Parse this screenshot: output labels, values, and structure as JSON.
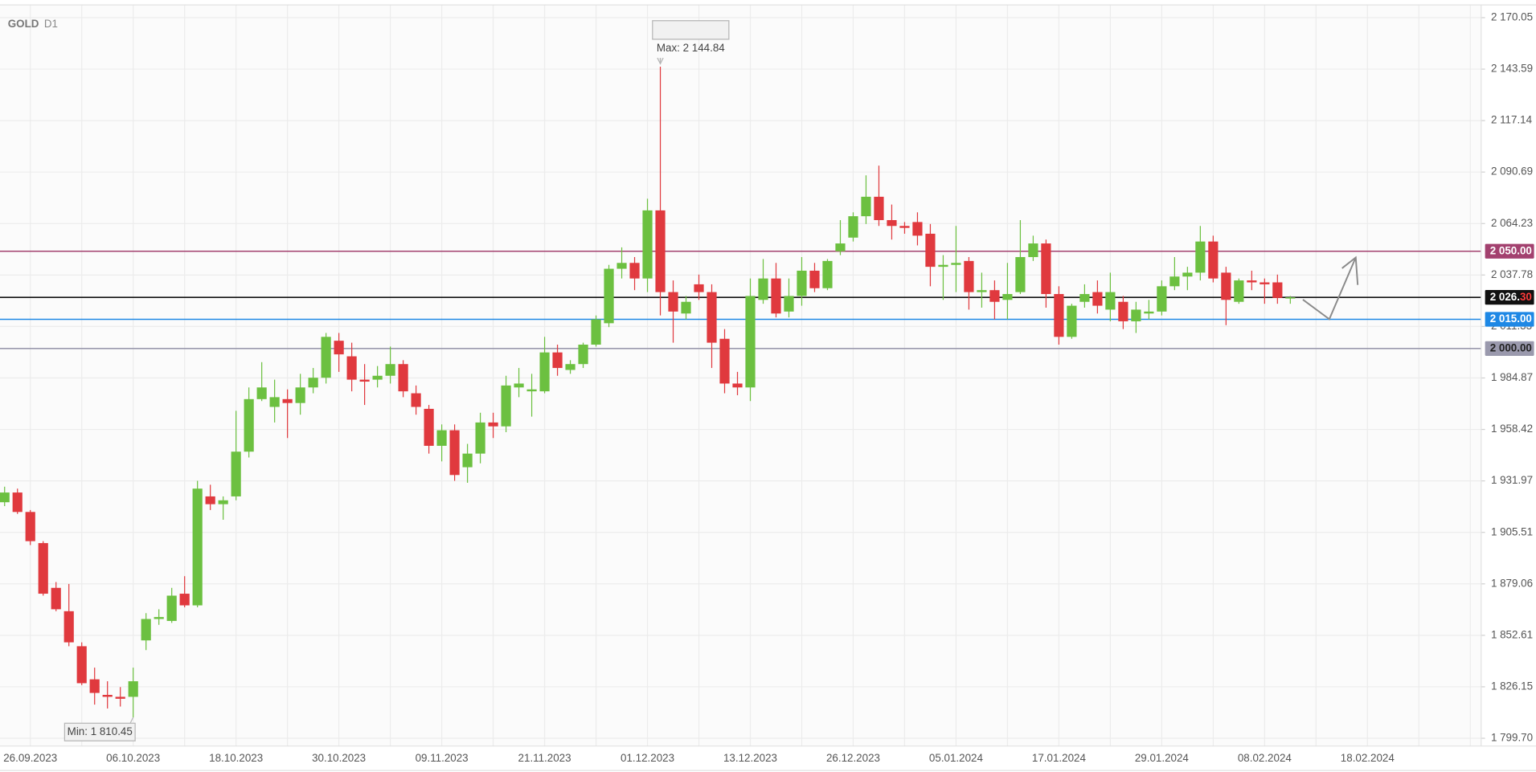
{
  "chart_data": {
    "type": "candlestick",
    "title": "GOLD",
    "timeframe": "D1",
    "categories": [
      null,
      null,
      "26.09.2023",
      null,
      null,
      null,
      null,
      null,
      null,
      null,
      "06.10.2023",
      null,
      null,
      null,
      null,
      null,
      null,
      null,
      "18.10.2023",
      null,
      null,
      null,
      null,
      null,
      null,
      null,
      "30.10.2023",
      null,
      null,
      null,
      null,
      null,
      null,
      null,
      "09.11.2023",
      null,
      null,
      null,
      null,
      null,
      null,
      null,
      "21.11.2023",
      null,
      null,
      null,
      null,
      null,
      null,
      null,
      "01.12.2023",
      null,
      null,
      null,
      null,
      null,
      null,
      null,
      "13.12.2023",
      null,
      null,
      null,
      null,
      null,
      null,
      null,
      "26.12.2023",
      null,
      null,
      null,
      null,
      null,
      null,
      null,
      "05.01.2024",
      null,
      null,
      null,
      null,
      null,
      null,
      null,
      "17.01.2024",
      null,
      null,
      null,
      null,
      null,
      null,
      null,
      "29.01.2024",
      null,
      null,
      null,
      null,
      null,
      null,
      null,
      "08.02.2024",
      null,
      null,
      null,
      null,
      null,
      null,
      null,
      "18.02.2024"
    ],
    "open": [
      1921,
      1926,
      1916,
      1900,
      1877,
      1865,
      1847,
      1830,
      1822,
      1821,
      1821,
      1850,
      1861,
      1860,
      1874,
      1868,
      1924,
      1920,
      1924,
      1947,
      1974,
      1970,
      1974,
      1972,
      1980,
      1985,
      2004,
      1996,
      1984,
      1984,
      1986,
      1992,
      1977,
      1969,
      1950,
      1958,
      1939,
      1946,
      1962,
      1960,
      1980,
      1978,
      1978,
      1998,
      1989,
      1992,
      2002,
      2013,
      2041,
      2044,
      2036,
      2071,
      2029,
      2018,
      2033,
      2029,
      2005,
      1982,
      1980,
      2025,
      2036,
      2019,
      2027,
      2040,
      2031,
      2050,
      2057,
      2068,
      2078,
      2066,
      2063,
      2065,
      2059,
      2042,
      2043,
      2045,
      2029,
      2030,
      2025,
      2029,
      2047,
      2054,
      2028,
      2006,
      2024,
      2029,
      2020,
      2024,
      2014,
      2018,
      2019,
      2032,
      2037,
      2039,
      2055,
      2039,
      2024,
      2035,
      2034,
      2034,
      2026,
      null,
      null,
      null,
      null,
      null,
      null
    ],
    "high": [
      1929,
      1928,
      1917,
      1901,
      1880,
      1879,
      1849,
      1836,
      1829,
      1826,
      1836,
      1864,
      1866,
      1877,
      1883,
      1932,
      1930,
      1924,
      1968,
      1980,
      1993,
      1984,
      1979,
      1987,
      1990,
      2008,
      2008,
      2003,
      1992,
      1991,
      2001,
      1994,
      1981,
      1971,
      1961,
      1961,
      1951,
      1967,
      1967,
      1986,
      1990,
      1987,
      2006,
      2002,
      1994,
      2003,
      2017,
      2043,
      2052,
      2047,
      2077,
      2144.84,
      2035,
      2027,
      2038,
      2033,
      2010,
      1988,
      2036,
      2046,
      2044,
      2036,
      2047,
      2044,
      2046,
      2066,
      2070,
      2089,
      2094,
      2074,
      2065,
      2070,
      2064,
      2048,
      2063,
      2047,
      2039,
      2035,
      2044,
      2066,
      2058,
      2056,
      2032,
      2023,
      2033,
      2035,
      2039,
      2027,
      2024,
      2025,
      2035,
      2047,
      2042,
      2063,
      2058,
      2042,
      2036,
      2040,
      2036,
      2038,
      2027,
      null,
      null,
      null,
      null,
      null,
      null
    ],
    "low": [
      1919,
      1915,
      1899,
      1873,
      1865,
      1847,
      1827,
      1817,
      1815,
      1816,
      1810.45,
      1845,
      1858,
      1859,
      1867,
      1867,
      1917,
      1912,
      1922,
      1944,
      1973,
      1962,
      1954,
      1966,
      1977,
      1982,
      1988,
      1978,
      1971,
      1980,
      1982,
      1975,
      1966,
      1946,
      1942,
      1932,
      1931,
      1941,
      1954,
      1957,
      1975,
      1965,
      1977,
      1986,
      1987,
      1990,
      2001,
      2011,
      2036,
      2030,
      2029,
      2017,
      2003,
      2015,
      2025,
      1990,
      1977,
      1976,
      1973,
      2023,
      2016,
      2016,
      2022,
      2029,
      2030,
      2048,
      2055,
      2064,
      2063,
      2056,
      2059,
      2053,
      2032,
      2025,
      2029,
      2020,
      2021,
      2015,
      2015,
      2028,
      2045,
      2021,
      2002,
      2005,
      2021,
      2018,
      2014,
      2010,
      2008,
      2015,
      2017,
      2030,
      2030,
      2035,
      2034,
      2012,
      2023,
      2030,
      2023,
      2023,
      2023,
      null,
      null,
      null,
      null,
      null,
      null
    ],
    "close": [
      1926,
      1916,
      1901,
      1874,
      1866,
      1849,
      1828,
      1823,
      1821,
      1820,
      1829,
      1861,
      1862,
      1873,
      1868,
      1928,
      1920,
      1922,
      1947,
      1974,
      1980,
      1975,
      1972,
      1980,
      1985,
      2006,
      1997,
      1984,
      1983,
      1986,
      1992,
      1978,
      1970,
      1950,
      1958,
      1935,
      1946,
      1962,
      1960,
      1981,
      1982,
      1979,
      1998,
      1990,
      1992,
      2002,
      2015,
      2041,
      2044,
      2036,
      2071,
      2029,
      2019,
      2024,
      2029,
      2003,
      1982,
      1980,
      2027,
      2036,
      2018,
      2027,
      2040,
      2031,
      2045,
      2054,
      2068,
      2078,
      2066,
      2063,
      2062,
      2058,
      2042,
      2043,
      2044,
      2029,
      2030,
      2024,
      2028,
      2047,
      2054,
      2028,
      2006,
      2022,
      2028,
      2022,
      2029,
      2014,
      2020,
      2019,
      2032,
      2037,
      2039,
      2055,
      2036,
      2025,
      2035,
      2034,
      2033,
      2026,
      2026.3,
      null,
      null,
      null,
      null,
      null,
      null
    ],
    "up_color": "#6cc040",
    "down_color": "#e0393e",
    "ylim": [
      1795.7,
      2176.6
    ],
    "yticks": [
      {
        "value": 1799.7,
        "label": "1 799.70"
      },
      {
        "value": 1826.15,
        "label": "1 826.15"
      },
      {
        "value": 1852.61,
        "label": "1 852.61"
      },
      {
        "value": 1879.06,
        "label": "1 879.06"
      },
      {
        "value": 1905.51,
        "label": "1 905.51"
      },
      {
        "value": 1931.97,
        "label": "1 931.97"
      },
      {
        "value": 1958.42,
        "label": "1 958.42"
      },
      {
        "value": 1984.87,
        "label": "1 984.87"
      },
      {
        "value": 2011.33,
        "label": "2 011.33"
      },
      {
        "value": 2037.78,
        "label": "2 037.78"
      },
      {
        "value": 2064.23,
        "label": "2 064.23"
      },
      {
        "value": 2090.69,
        "label": "2 090.69"
      },
      {
        "value": 2117.14,
        "label": "2 117.14"
      },
      {
        "value": 2143.59,
        "label": "2 143.59"
      },
      {
        "value": 2170.05,
        "label": "2 170.05"
      }
    ],
    "grid": true,
    "levels": [
      {
        "value": 2050.0,
        "label": "2 050.00",
        "color": "#a3416f",
        "label_color": "#ffffff"
      },
      {
        "value": 2026.3,
        "label": "2 026.30",
        "color": "#111111",
        "label_color": "#ffffff",
        "accent_color": "#ff3b3b"
      },
      {
        "value": 2015.0,
        "label": "2 015.00",
        "color": "#1e88e5",
        "label_color": "#ffffff"
      },
      {
        "value": 2000.0,
        "label": "2 000.00",
        "color": "#9a99ad",
        "label_color": "#222222"
      }
    ],
    "annotations": [
      {
        "text": "Max: 2 144.84",
        "value": 2144.84,
        "kind": "high"
      },
      {
        "text": "Min: 1 810.45",
        "value": 1810.45,
        "kind": "low"
      }
    ]
  }
}
